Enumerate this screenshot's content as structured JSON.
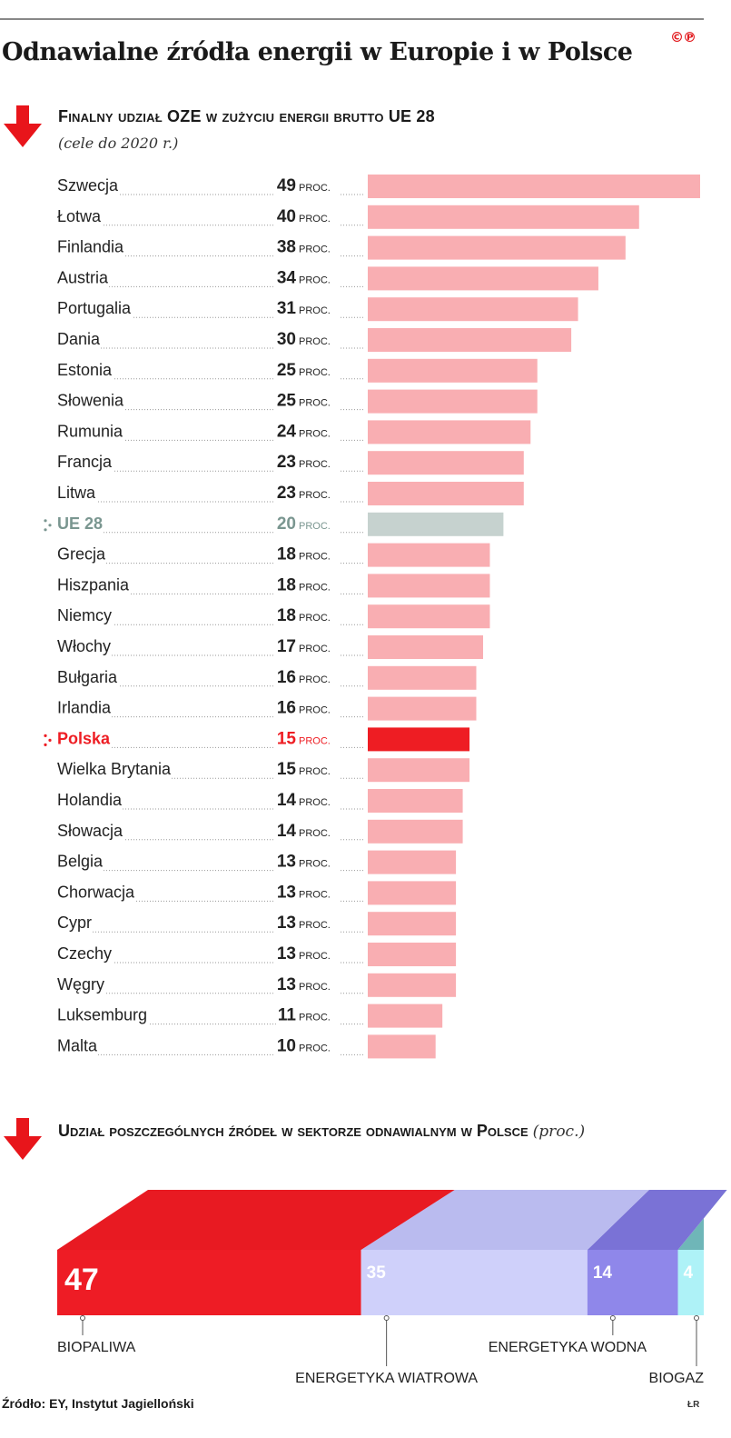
{
  "header": {
    "title": "Odnawialne źródła energii w Europie i w Polsce",
    "logo_text": "©℗"
  },
  "colors": {
    "accent": "#e8151b",
    "bar": "#f9aeb2",
    "bar_eu": "#c6d2cf",
    "eu_text": "#7a9690",
    "polska": "#ee1d23"
  },
  "chart_data": [
    {
      "type": "bar",
      "orientation": "horizontal",
      "title": "Finalny udział OZE w zużyciu energii brutto UE 28",
      "subtitle": "(cele do 2020 r.)",
      "unit": "PROC.",
      "categories": [
        "Szwecja",
        "Łotwa",
        "Finlandia",
        "Austria",
        "Portugalia",
        "Dania",
        "Estonia",
        "Słowenia",
        "Rumunia",
        "Francja",
        "Litwa",
        "UE 28",
        "Grecja",
        "Hiszpania",
        "Niemcy",
        "Włochy",
        "Bułgaria",
        "Irlandia",
        "Polska",
        "Wielka Brytania",
        "Holandia",
        "Słowacja",
        "Belgia",
        "Chorwacja",
        "Cypr",
        "Czechy",
        "Węgry",
        "Luksemburg",
        "Malta"
      ],
      "values": [
        49,
        40,
        38,
        34,
        31,
        30,
        25,
        25,
        24,
        23,
        23,
        20,
        18,
        18,
        18,
        17,
        16,
        16,
        15,
        15,
        14,
        14,
        13,
        13,
        13,
        13,
        13,
        11,
        10
      ],
      "highlight": {
        "UE 28": "eu",
        "Polska": "polska"
      },
      "xlim": [
        0,
        49
      ]
    },
    {
      "type": "bar",
      "orientation": "stacked-horizontal",
      "title": "Udział poszczególnych źródeł w sektorze odnawialnym w Polsce",
      "title_note": "(proc.)",
      "series": [
        {
          "name": "BIOPALIWA",
          "value": 47,
          "color": "#ee1c25",
          "top_color": "#e81a22"
        },
        {
          "name": "ENERGETYKA WIATROWA",
          "value": 35,
          "color": "#cfd0fa",
          "top_color": "#babbef"
        },
        {
          "name": "ENERGETYKA WODNA",
          "value": 14,
          "color": "#8f87ea",
          "top_color": "#7a72d6"
        },
        {
          "name": "BIOGAZ",
          "value": 4,
          "color": "#aef2f7",
          "top_color": "#6fb6b8"
        }
      ],
      "total": 100
    }
  ],
  "footer": {
    "source": "Źródło: EY, Instytut Jagielloński",
    "author": "ŁR"
  }
}
